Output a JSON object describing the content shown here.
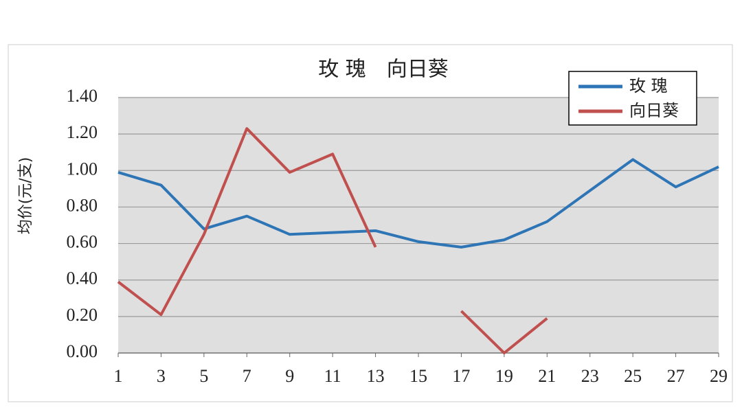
{
  "chart_data": {
    "type": "line",
    "title": "玫 瑰　向日葵",
    "y_label": "均价(元/支)",
    "x": [
      1,
      3,
      5,
      7,
      9,
      11,
      13,
      15,
      17,
      19,
      21,
      23,
      25,
      27,
      29
    ],
    "xlim": [
      1,
      29
    ],
    "xticks": [
      1,
      3,
      5,
      7,
      9,
      11,
      13,
      15,
      17,
      19,
      21,
      23,
      25,
      27,
      29
    ],
    "ylim": [
      0,
      1.4
    ],
    "yticks": [
      {
        "value": 0,
        "label": "0.00"
      },
      {
        "value": 0.2,
        "label": "0.20"
      },
      {
        "value": 0.4,
        "label": "0.40"
      },
      {
        "value": 0.6,
        "label": "0.60"
      },
      {
        "value": 0.8,
        "label": "0.80"
      },
      {
        "value": 1.0,
        "label": "1.00"
      },
      {
        "value": 1.2,
        "label": "1.20"
      },
      {
        "value": 1.4,
        "label": "1.40"
      }
    ],
    "grid": true,
    "legend": "upper right",
    "series": [
      {
        "name": "玫 瑰",
        "color": "#2e75b6",
        "values": [
          0.99,
          0.92,
          0.68,
          0.75,
          0.65,
          0.66,
          0.67,
          0.61,
          0.58,
          0.62,
          0.72,
          0.89,
          1.06,
          0.91,
          1.02
        ]
      },
      {
        "name": "向日葵",
        "color": "#c0504d",
        "values": [
          0.39,
          0.21,
          0.65,
          1.23,
          0.99,
          1.09,
          0.58,
          null,
          0.23,
          0.0,
          0.19,
          null,
          null,
          null,
          null
        ]
      }
    ]
  }
}
